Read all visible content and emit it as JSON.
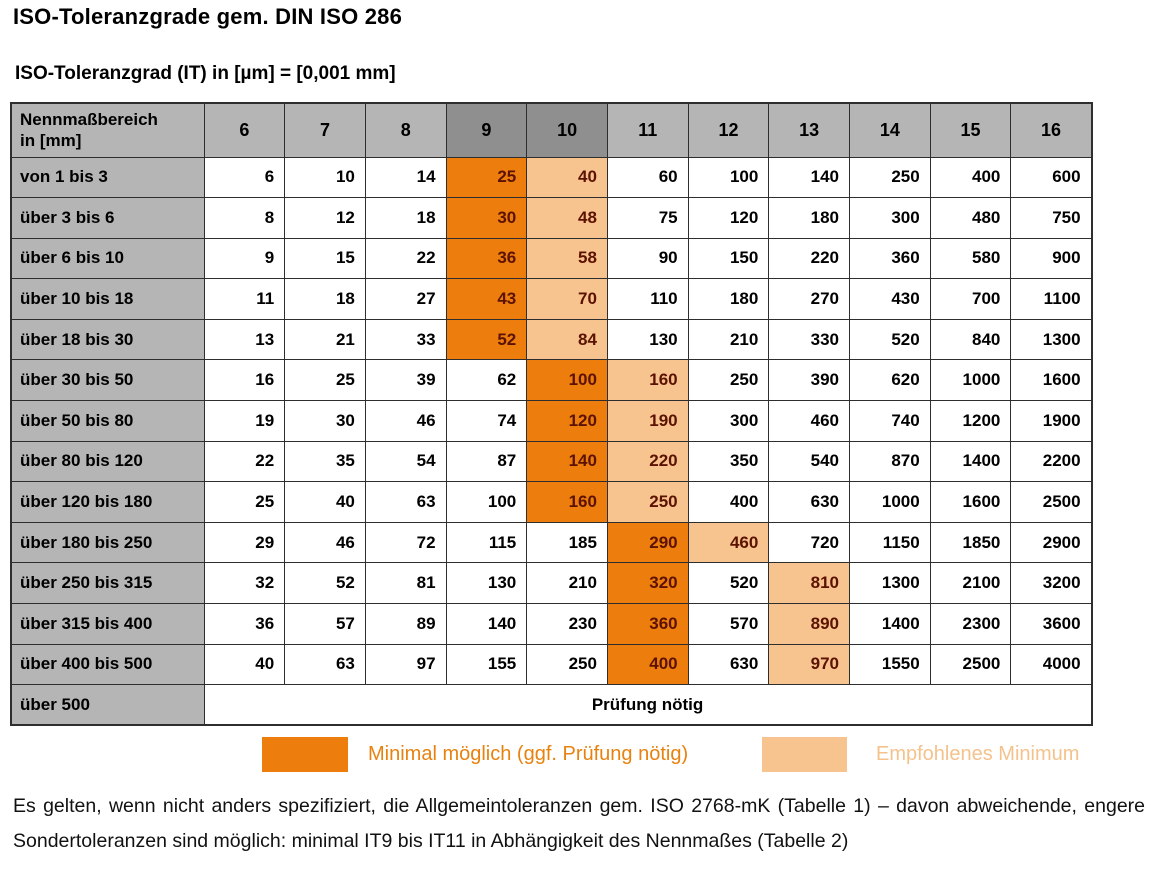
{
  "page": {
    "title": "ISO-Toleranzgrade gem. DIN ISO 286",
    "subtitle": "ISO-Toleranzgrad (IT) in [µm] = [0,001 mm]"
  },
  "table": {
    "corner_label_line1": "Nennmaßbereich",
    "corner_label_line2": "in [mm]",
    "it_grades": [
      "6",
      "7",
      "8",
      "9",
      "10",
      "11",
      "12",
      "13",
      "14",
      "15",
      "16"
    ],
    "dark_header_cols": [
      3,
      4
    ],
    "rows": [
      {
        "label": "von 1 bis 3",
        "values": [
          "6",
          "10",
          "14",
          "25",
          "40",
          "60",
          "100",
          "140",
          "250",
          "400",
          "600"
        ],
        "dark_idx": 3,
        "light_idx": 4
      },
      {
        "label": "über 3 bis 6",
        "values": [
          "8",
          "12",
          "18",
          "30",
          "48",
          "75",
          "120",
          "180",
          "300",
          "480",
          "750"
        ],
        "dark_idx": 3,
        "light_idx": 4
      },
      {
        "label": "über 6 bis 10",
        "values": [
          "9",
          "15",
          "22",
          "36",
          "58",
          "90",
          "150",
          "220",
          "360",
          "580",
          "900"
        ],
        "dark_idx": 3,
        "light_idx": 4
      },
      {
        "label": "über 10 bis 18",
        "values": [
          "11",
          "18",
          "27",
          "43",
          "70",
          "110",
          "180",
          "270",
          "430",
          "700",
          "1100"
        ],
        "dark_idx": 3,
        "light_idx": 4
      },
      {
        "label": "über 18 bis 30",
        "values": [
          "13",
          "21",
          "33",
          "52",
          "84",
          "130",
          "210",
          "330",
          "520",
          "840",
          "1300"
        ],
        "dark_idx": 3,
        "light_idx": 4
      },
      {
        "label": "über 30 bis 50",
        "values": [
          "16",
          "25",
          "39",
          "62",
          "100",
          "160",
          "250",
          "390",
          "620",
          "1000",
          "1600"
        ],
        "dark_idx": 4,
        "light_idx": 5
      },
      {
        "label": "über 50 bis 80",
        "values": [
          "19",
          "30",
          "46",
          "74",
          "120",
          "190",
          "300",
          "460",
          "740",
          "1200",
          "1900"
        ],
        "dark_idx": 4,
        "light_idx": 5
      },
      {
        "label": "über 80 bis 120",
        "values": [
          "22",
          "35",
          "54",
          "87",
          "140",
          "220",
          "350",
          "540",
          "870",
          "1400",
          "2200"
        ],
        "dark_idx": 4,
        "light_idx": 5
      },
      {
        "label": "über 120 bis 180",
        "values": [
          "25",
          "40",
          "63",
          "100",
          "160",
          "250",
          "400",
          "630",
          "1000",
          "1600",
          "2500"
        ],
        "dark_idx": 4,
        "light_idx": 5
      },
      {
        "label": "über 180 bis 250",
        "values": [
          "29",
          "46",
          "72",
          "115",
          "185",
          "290",
          "460",
          "720",
          "1150",
          "1850",
          "2900"
        ],
        "dark_idx": 5,
        "light_idx": 6
      },
      {
        "label": "über 250 bis 315",
        "values": [
          "32",
          "52",
          "81",
          "130",
          "210",
          "320",
          "520",
          "810",
          "1300",
          "2100",
          "3200"
        ],
        "dark_idx": 5,
        "light_idx": 7
      },
      {
        "label": "über 315 bis 400",
        "values": [
          "36",
          "57",
          "89",
          "140",
          "230",
          "360",
          "570",
          "890",
          "1400",
          "2300",
          "3600"
        ],
        "dark_idx": 5,
        "light_idx": 7
      },
      {
        "label": "über 400 bis 500",
        "values": [
          "40",
          "63",
          "97",
          "155",
          "250",
          "400",
          "630",
          "970",
          "1550",
          "2500",
          "4000"
        ],
        "dark_idx": 5,
        "light_idx": 7
      }
    ],
    "last_row": {
      "label": "über 500",
      "text": "Prüfung nötig"
    }
  },
  "legend": {
    "items": [
      {
        "name": "minimal-moeglich",
        "label": "Minimal möglich (ggf. Prüfung nötig)",
        "color": "#ed7d0c"
      },
      {
        "name": "empfohlenes-minimum",
        "label": "Empfohlenes Minimum",
        "color": "#f7c48f"
      }
    ]
  },
  "note": "Es gelten, wenn nicht anders spezifiziert, die Allgemeintoleranzen gem. ISO 2768-mK (Tabelle 1) – davon abweichende, engere Sondertoleranzen sind möglich: minimal IT9 bis IT11 in Abhängigkeit des Nennmaßes (Tabelle 2)",
  "colors": {
    "dark_orange": "#ed7d0c",
    "light_orange": "#f7c48f",
    "header_gray": "#b5b5b5",
    "header_dark_gray": "#8f8f8f",
    "label_gray": "#b5b5b5",
    "orange_cell_text": "#5c1200",
    "legend_text_dark": "#e8820f",
    "legend_text_light": "#f5c28c"
  }
}
